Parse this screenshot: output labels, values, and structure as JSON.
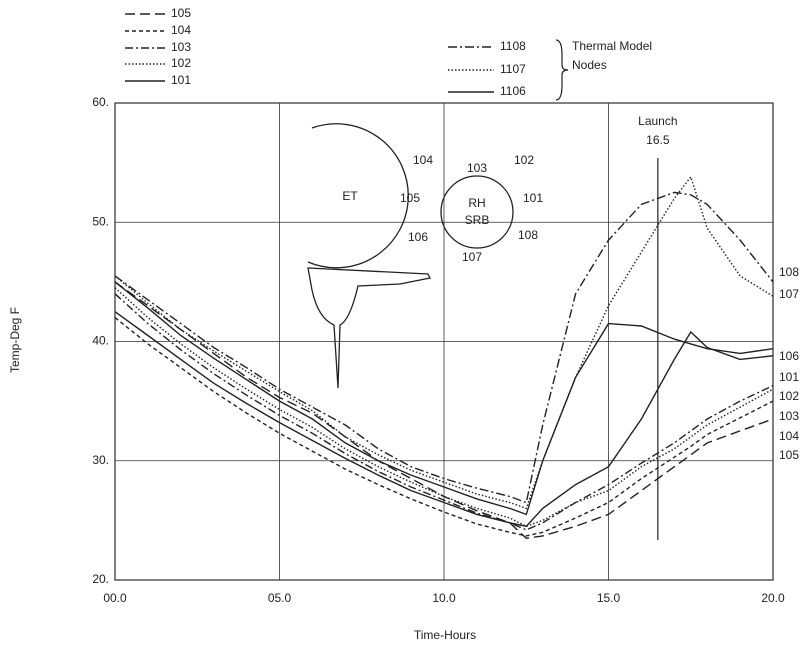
{
  "chart_data": {
    "type": "line",
    "x_label": "Time-Hours",
    "y_label": "Temp-Deg F",
    "x": [
      0,
      1,
      2,
      3,
      4,
      5,
      6,
      7,
      8,
      9,
      10,
      11,
      12,
      12.5,
      13,
      14,
      15,
      16,
      17,
      17.5,
      18,
      19,
      20
    ],
    "series": [
      {
        "name": "105",
        "color": "#222",
        "dash": "10 5",
        "values": [
          45,
          43,
          41,
          39,
          37,
          35.3,
          34,
          32,
          30,
          28.5,
          27,
          25.8,
          24.8,
          23.5,
          23.7,
          24.5,
          25.5,
          27.5,
          29.5,
          30.5,
          31.5,
          32.5,
          33.5
        ]
      },
      {
        "name": "104",
        "color": "#222",
        "dash": "4 3",
        "values": [
          42,
          39.8,
          37.8,
          35.8,
          34,
          32.3,
          30.8,
          29.3,
          28,
          26.8,
          25.7,
          24.7,
          24,
          23.7,
          24,
          25.2,
          26.5,
          28.5,
          30.3,
          31.2,
          32.2,
          33.6,
          35
        ]
      },
      {
        "name": "103",
        "color": "#222",
        "dash": "8 3 2 3",
        "values": [
          44,
          41.5,
          39.3,
          37.3,
          35.5,
          33.8,
          32.3,
          30.6,
          29.1,
          27.8,
          26.7,
          25.6,
          24.8,
          24.2,
          24.8,
          26.5,
          28,
          29.8,
          31.5,
          32.5,
          33.5,
          35,
          36.3
        ]
      },
      {
        "name": "102",
        "color": "#222",
        "dash": "1.5 2",
        "values": [
          44.5,
          42,
          39.8,
          37.8,
          36,
          34.3,
          32.8,
          31,
          29.5,
          28.2,
          27,
          26,
          25.2,
          24.5,
          25,
          26.5,
          27.5,
          29.5,
          31,
          32,
          33,
          34.5,
          36
        ]
      },
      {
        "name": "101",
        "color": "#222",
        "dash": "",
        "values": [
          42.5,
          40.5,
          38.5,
          36.5,
          34.8,
          33.2,
          31.7,
          30.2,
          28.8,
          27.5,
          26.5,
          25.5,
          24.8,
          24.5,
          26,
          28,
          29.5,
          33.5,
          38.5,
          40.8,
          39.5,
          38.5,
          38.8
        ]
      },
      {
        "name": "1108",
        "color": "#222",
        "dash": "9 3 2 3",
        "values": [
          45.5,
          43.5,
          41.5,
          39.5,
          37.8,
          36,
          34.5,
          33,
          31,
          29.5,
          28.5,
          27.7,
          27,
          26.5,
          33,
          44,
          48.5,
          51.5,
          52.5,
          52.3,
          51.5,
          48.5,
          45
        ]
      },
      {
        "name": "1107",
        "color": "#222",
        "dash": "1.5 2",
        "values": [
          45.5,
          43.2,
          41,
          39.2,
          37.5,
          35.8,
          34.2,
          32,
          30.5,
          29.2,
          28.2,
          27.2,
          26.5,
          26,
          30,
          37,
          43,
          47.5,
          52,
          53.8,
          49.5,
          45.5,
          43.8
        ]
      },
      {
        "name": "1106",
        "color": "#222",
        "dash": "",
        "values": [
          45,
          42.8,
          40.5,
          38.6,
          36.8,
          35,
          33.5,
          31.5,
          30,
          28.8,
          27.8,
          26.8,
          26,
          25.5,
          30,
          37,
          41.5,
          41.3,
          40.2,
          39.8,
          39.4,
          39,
          39.4
        ]
      }
    ],
    "xlim": [
      0,
      20
    ],
    "xticks": [
      {
        "value": 0,
        "label": "00.0"
      },
      {
        "value": 5,
        "label": "05.0"
      },
      {
        "value": 10,
        "label": "10.0"
      },
      {
        "value": 15,
        "label": "15.0"
      },
      {
        "value": 20,
        "label": "20.0"
      }
    ],
    "ylim": [
      20,
      60
    ],
    "yticks": [
      {
        "value": 20,
        "label": "20."
      },
      {
        "value": 30,
        "label": "30."
      },
      {
        "value": 40,
        "label": "40."
      },
      {
        "value": 50,
        "label": "50."
      },
      {
        "value": 60,
        "label": "60."
      }
    ],
    "grid": true,
    "legend_group_label": [
      "Thermal Model",
      "Nodes"
    ],
    "end_labels": [
      "108",
      "107",
      "106",
      "101",
      "102",
      "103",
      "104",
      "105"
    ],
    "launch": {
      "text": "Launch",
      "x": 16.5
    },
    "diagram": {
      "et": "ET",
      "srb": [
        "RH",
        "SRB"
      ],
      "nodes": [
        "103",
        "102",
        "101",
        "108",
        "107",
        "106",
        "105",
        "104"
      ]
    }
  }
}
